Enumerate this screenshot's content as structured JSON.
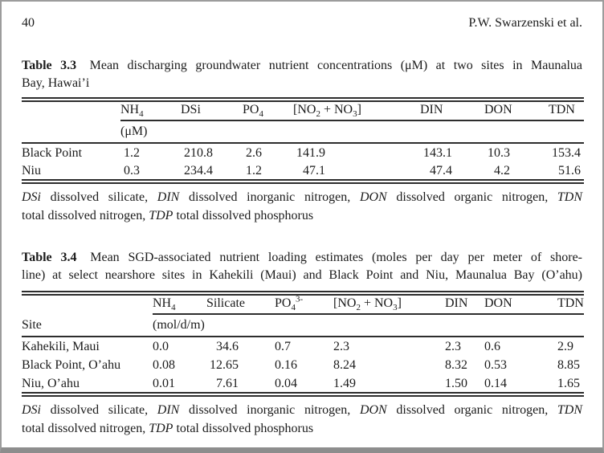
{
  "page": {
    "number": "40",
    "running_head": "P.W. Swarzenski et al."
  },
  "table33": {
    "caption": {
      "label": "Table 3.3",
      "line1": "Mean discharging groundwater nutrient concentrations (μM) at two sites in Maunalua",
      "line2": "Bay, Hawai’i"
    },
    "headers": {
      "nh4": [
        {
          "t": "NH"
        },
        {
          "sub": "4"
        }
      ],
      "dsi": [
        {
          "t": "DSi"
        }
      ],
      "po4": [
        {
          "t": "PO"
        },
        {
          "sub": "4"
        }
      ],
      "no2no3": [
        {
          "t": "[NO"
        },
        {
          "sub": "2"
        },
        {
          "t": " + NO"
        },
        {
          "sub": "3"
        },
        {
          "t": "]"
        }
      ],
      "din": [
        {
          "t": "DIN"
        }
      ],
      "don": [
        {
          "t": "DON"
        }
      ],
      "tdn": [
        {
          "t": "TDN"
        }
      ]
    },
    "unit": "(μM)",
    "rows": [
      {
        "site": "Black Point",
        "nh4": "1.2",
        "dsi": "210.8",
        "po4": "2.6",
        "no2no3": "141.9",
        "din": "143.1",
        "don": "10.3",
        "tdn": "153.4"
      },
      {
        "site": "Niu",
        "nh4": "0.3",
        "dsi": "234.4",
        "po4": "1.2",
        "no2no3": "47.1",
        "din": "47.4",
        "don": "4.2",
        "tdn": "51.6"
      }
    ]
  },
  "table34": {
    "caption": {
      "label": "Table 3.4",
      "line1": "Mean SGD-associated nutrient loading estimates (moles per day per meter of shore-",
      "line2": "line) at select nearshore sites in Kahekili (Maui) and Black Point and Niu, Maunalua Bay (O’ahu)"
    },
    "headers": {
      "nh4": [
        {
          "t": "NH"
        },
        {
          "sub": "4"
        }
      ],
      "silicate": [
        {
          "t": "Silicate"
        }
      ],
      "po4": [
        {
          "t": "PO"
        },
        {
          "sub": "4"
        },
        {
          "sup": "3-"
        }
      ],
      "no2no3": [
        {
          "t": "[NO"
        },
        {
          "sub": "2"
        },
        {
          "t": " + NO"
        },
        {
          "sub": "3"
        },
        {
          "t": "]"
        }
      ],
      "din": [
        {
          "t": "DIN"
        }
      ],
      "don": [
        {
          "t": "DON"
        }
      ],
      "tdn": [
        {
          "t": "TDN"
        }
      ]
    },
    "site_label": "Site",
    "unit": "(mol/d/m)",
    "rows": [
      {
        "site": "Kahekili, Maui",
        "nh4": "0.0",
        "silicate": "34.6",
        "po4": "0.7",
        "no2no3": "2.3",
        "din": "2.3",
        "don": "0.6",
        "tdn": "2.9"
      },
      {
        "site": "Black Point, O’ahu",
        "nh4": "0.08",
        "silicate": "12.65",
        "po4": "0.16",
        "no2no3": "8.24",
        "din": "8.32",
        "don": "0.53",
        "tdn": "8.85"
      },
      {
        "site": "Niu, O’ahu",
        "nh4": "0.01",
        "silicate": "7.61",
        "po4": "0.04",
        "no2no3": "1.49",
        "din": "1.50",
        "don": "0.14",
        "tdn": "1.65"
      }
    ]
  },
  "footnote": {
    "line1": [
      {
        "t": "DSi",
        "i": true
      },
      {
        "t": " dissolved silicate, "
      },
      {
        "t": "DIN",
        "i": true
      },
      {
        "t": " dissolved inorganic nitrogen, "
      },
      {
        "t": "DON",
        "i": true
      },
      {
        "t": " dissolved organic nitrogen, "
      },
      {
        "t": "TDN",
        "i": true
      }
    ],
    "line2": [
      {
        "t": "total dissolved nitrogen, "
      },
      {
        "t": "TDP",
        "i": true
      },
      {
        "t": " total dissolved phosphorus"
      }
    ]
  }
}
